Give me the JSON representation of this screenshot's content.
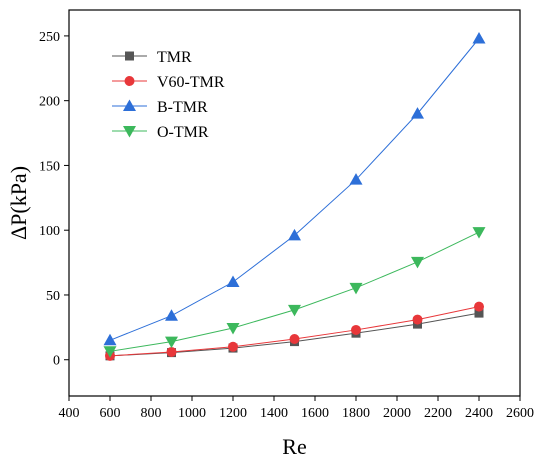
{
  "chart_data": {
    "type": "line",
    "title": "",
    "xlabel": "Re",
    "ylabel": "ΔP(kPa)",
    "xlim": [
      400,
      2600
    ],
    "ylim": [
      -28,
      270
    ],
    "x_ticks": [
      400,
      600,
      800,
      1000,
      1200,
      1400,
      1600,
      1800,
      2000,
      2200,
      2400,
      2600
    ],
    "y_ticks": [
      0,
      50,
      100,
      150,
      200,
      250
    ],
    "grid": false,
    "legend_position": "top-left",
    "x": [
      600,
      900,
      1200,
      1500,
      1800,
      2100,
      2400
    ],
    "series": [
      {
        "name": "TMR",
        "marker": "square",
        "color": "#555555",
        "values": [
          3,
          5.5,
          9,
          14,
          20.5,
          27.5,
          36
        ]
      },
      {
        "name": "V60-TMR",
        "marker": "circle",
        "color": "#e8373a",
        "values": [
          3,
          6,
          10,
          16,
          23,
          31,
          41
        ]
      },
      {
        "name": "B-TMR",
        "marker": "triangle-up",
        "color": "#2d6fd8",
        "values": [
          15,
          34,
          60,
          96,
          139,
          190,
          248
        ]
      },
      {
        "name": "O-TMR",
        "marker": "triangle-down",
        "color": "#3cb85c",
        "values": [
          6.5,
          14,
          24.5,
          38.5,
          55.5,
          75.5,
          98.5
        ]
      }
    ]
  }
}
